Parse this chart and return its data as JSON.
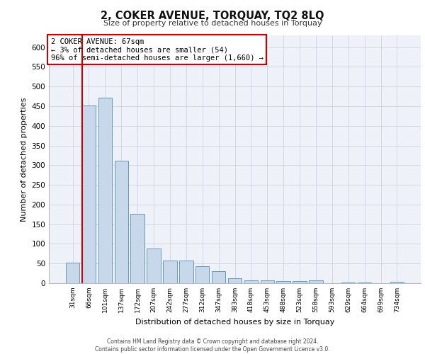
{
  "title": "2, COKER AVENUE, TORQUAY, TQ2 8LQ",
  "subtitle": "Size of property relative to detached houses in Torquay",
  "xlabel": "Distribution of detached houses by size in Torquay",
  "ylabel": "Number of detached properties",
  "categories": [
    "31sqm",
    "66sqm",
    "101sqm",
    "137sqm",
    "172sqm",
    "207sqm",
    "242sqm",
    "277sqm",
    "312sqm",
    "347sqm",
    "383sqm",
    "418sqm",
    "453sqm",
    "488sqm",
    "523sqm",
    "558sqm",
    "593sqm",
    "629sqm",
    "664sqm",
    "699sqm",
    "734sqm"
  ],
  "values": [
    53,
    452,
    472,
    311,
    177,
    88,
    57,
    57,
    43,
    31,
    13,
    8,
    8,
    5,
    5,
    7,
    0,
    2,
    2,
    0,
    4
  ],
  "bar_color": "#c8d8eb",
  "bar_edge_color": "#6699bb",
  "highlight_bar_index": 1,
  "highlight_edge_color": "#cc0000",
  "ylim": [
    0,
    630
  ],
  "yticks": [
    0,
    50,
    100,
    150,
    200,
    250,
    300,
    350,
    400,
    450,
    500,
    550,
    600
  ],
  "annotation_text": "2 COKER AVENUE: 67sqm\n← 3% of detached houses are smaller (54)\n96% of semi-detached houses are larger (1,660) →",
  "annotation_box_color": "#ffffff",
  "annotation_box_edge": "#cc0000",
  "grid_color": "#c8d4e4",
  "bg_color": "#eef2f8",
  "footer_line1": "Contains HM Land Registry data © Crown copyright and database right 2024.",
  "footer_line2": "Contains public sector information licensed under the Open Government Licence v3.0."
}
